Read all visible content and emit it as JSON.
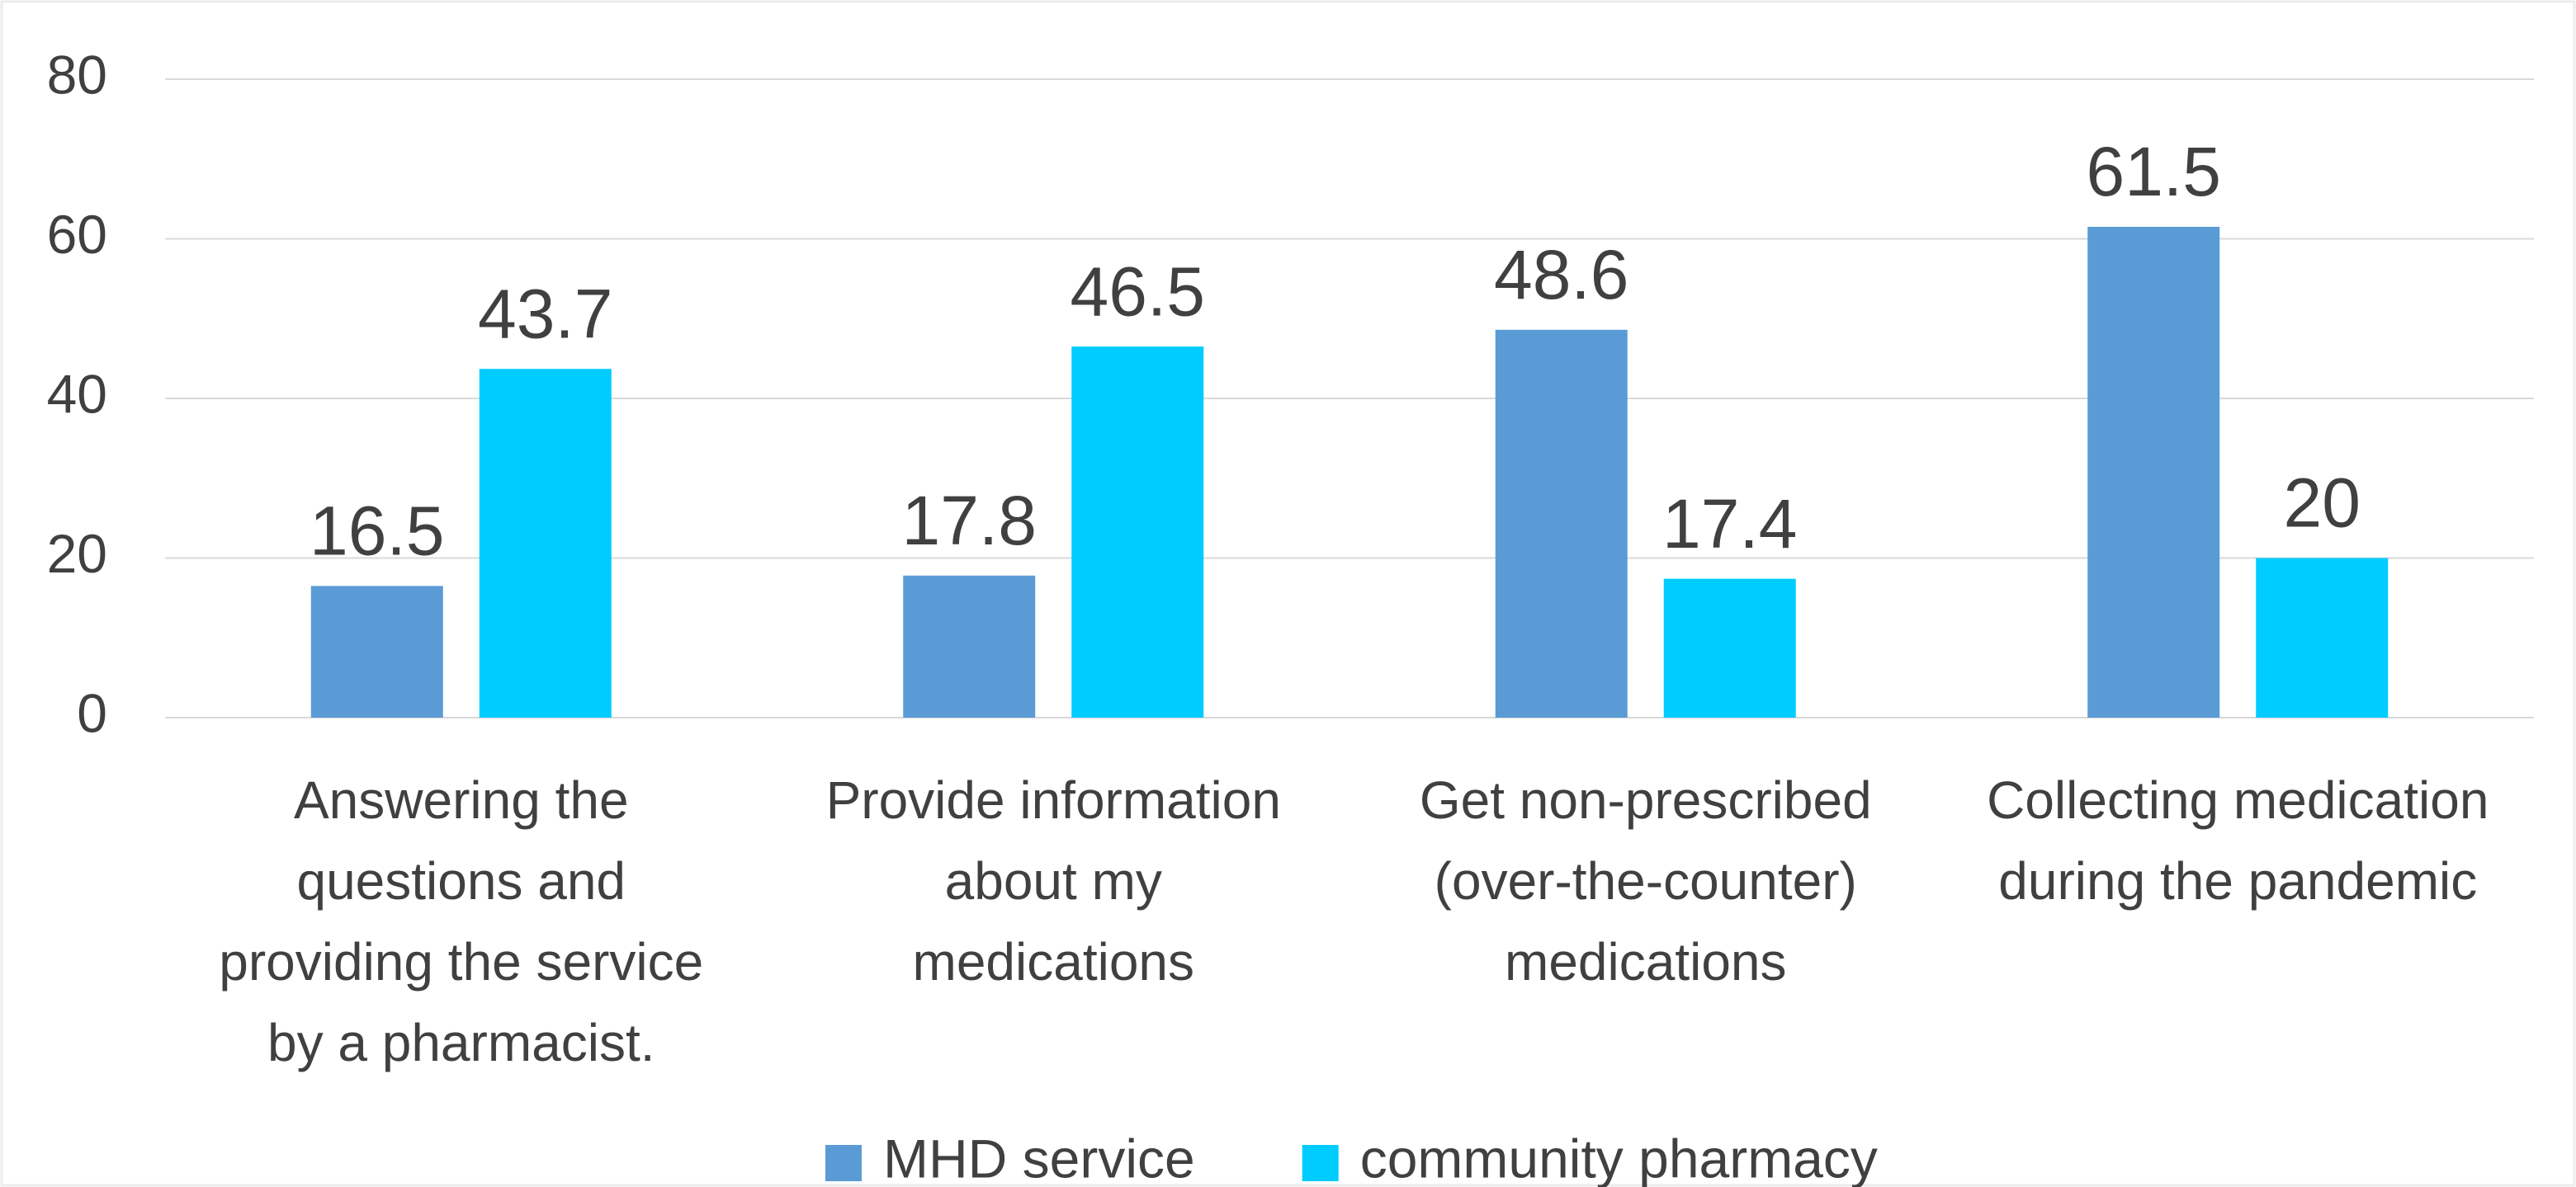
{
  "chart_data": {
    "type": "bar",
    "categories": [
      "Answering the\nquestions and\nproviding the service\nby a pharmacist.",
      "Provide information\nabout my\nmedications",
      "Get non-prescribed\n(over-the-counter)\nmedications",
      "Collecting medication\nduring the pandemic"
    ],
    "series": [
      {
        "name": "MHD service",
        "color": "#5b9bd5",
        "values": [
          16.5,
          17.8,
          48.6,
          61.5
        ]
      },
      {
        "name": "community pharmacy",
        "color": "#00ccff",
        "values": [
          43.7,
          46.5,
          17.4,
          20
        ]
      }
    ],
    "ylim": [
      0,
      80
    ],
    "yticks": [
      0,
      20,
      40,
      60,
      80
    ],
    "grid": true,
    "legend": "bottom"
  }
}
